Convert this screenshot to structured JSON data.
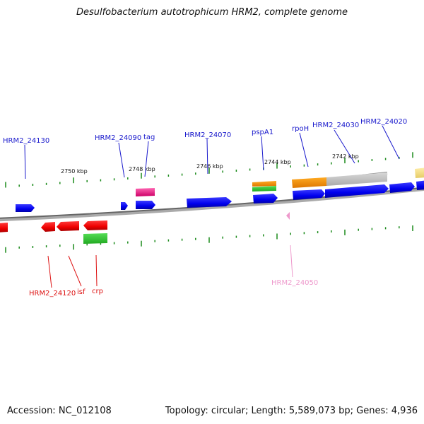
{
  "title": "Desulfobacterium autotrophicum HRM2, complete genome",
  "footer": {
    "accession": "Accession: NC_012108",
    "summary": "Topology: circular; Length: 5,589,073 bp; Genes: 4,936"
  },
  "colors": {
    "forward_gene": "#1a1aff",
    "reverse_gene": "#ff1111",
    "trna": "#ff3399",
    "rrna": "#ff9900",
    "misc": "#33cc33",
    "pseudo": "#ff99cc",
    "backbone": "#888888",
    "tick": "#1a8a1a",
    "forward_label": "#1a1acc",
    "reverse_label": "#dd1111",
    "pseudo_label": "#ee99cc"
  },
  "scale": {
    "labels": [
      "2750 kbp",
      "2748 kbp",
      "2746 kbp",
      "2744 kbp",
      "2742 kbp"
    ]
  },
  "genes": {
    "forward": [
      "HRM2_24130",
      "HRM2_24090",
      "tag",
      "HRM2_24070",
      "pspA1",
      "rpoH",
      "HRM2_24030",
      "HRM2_24020"
    ],
    "reverse": [
      "HRM2_24120",
      "isf",
      "crp"
    ],
    "pseudo": [
      "HRM2_24050"
    ]
  }
}
